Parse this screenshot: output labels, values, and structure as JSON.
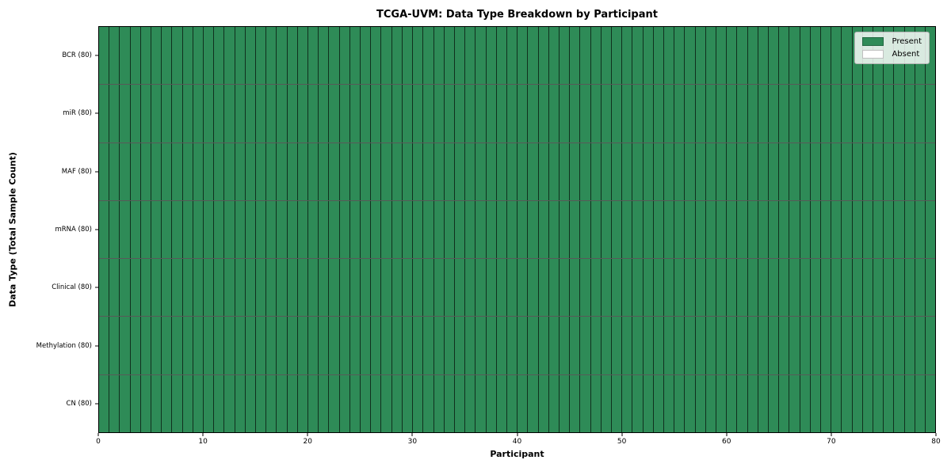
{
  "chart_data": {
    "type": "heatmap",
    "title": "TCGA-UVM: Data Type Breakdown by Participant",
    "xlabel": "Participant",
    "ylabel": "Data Type (Total Sample Count)",
    "rows": [
      "BCR (80)",
      "miR (80)",
      "MAF (80)",
      "mRNA (80)",
      "Clinical (80)",
      "Methylation (80)",
      "CN (80)"
    ],
    "n_participants": 80,
    "xlim": [
      0,
      80
    ],
    "x_ticks": [
      0,
      10,
      20,
      30,
      40,
      50,
      60,
      70,
      80
    ],
    "present_counts": [
      80,
      80,
      80,
      80,
      80,
      80,
      80
    ],
    "cell_states": "every cell Present: all 80 participants have data for all 7 data types",
    "legend": {
      "position": "upper-right",
      "entries": [
        {
          "label": "Present",
          "color": "#2e8b57"
        },
        {
          "label": "Absent",
          "color": "#ffffff"
        }
      ]
    },
    "colors": {
      "present": "#2e8b57",
      "absent": "#ffffff",
      "cell_edge": "rgba(0,0,0,0.65)",
      "spine": "#000000",
      "background": "#ffffff"
    },
    "grid": false
  }
}
